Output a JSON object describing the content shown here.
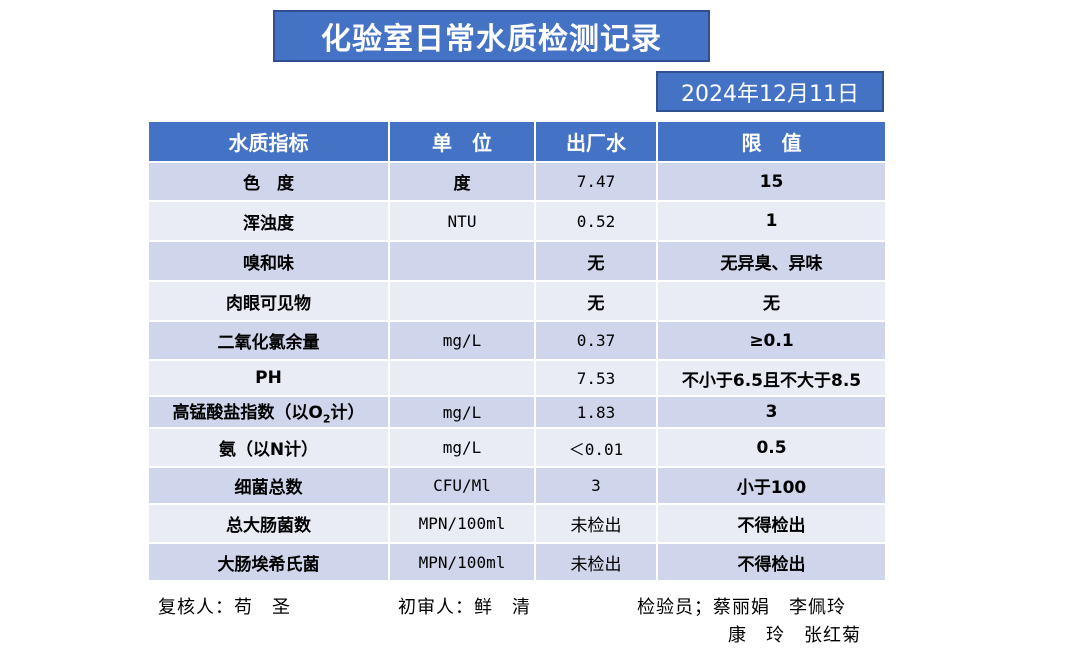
{
  "title": "化验室日常水质检测记录",
  "date": "2024年12月11日",
  "headers": [
    "水质指标",
    "单　位",
    "出厂水",
    "限　值"
  ],
  "rows": [
    {
      "indicator": "色　度",
      "unit": "度",
      "value": "7.47",
      "limit": "15"
    },
    {
      "indicator": "浑浊度",
      "unit": "NTU",
      "value": "0.52",
      "limit": "1"
    },
    {
      "indicator": "嗅和味",
      "unit": "",
      "value": "无",
      "limit": "无异臭、异味"
    },
    {
      "indicator": "肉眼可见物",
      "unit": "",
      "value": "无",
      "limit": "无"
    },
    {
      "indicator": "二氧化氯余量",
      "unit": "mg/L",
      "value": "0.37",
      "limit": "≥0.1"
    },
    {
      "indicator": "PH",
      "unit": "",
      "value": "7.53",
      "limit": "不小于6.5且不大于8.5"
    },
    {
      "indicator": "高锰酸盐指数（以O2计）",
      "indicator_pre": "高锰酸盐指数（以O",
      "indicator_sub": "2",
      "indicator_post": "计）",
      "unit": "mg/L",
      "value": "1.83",
      "limit": "3"
    },
    {
      "indicator": "氨（以N计）",
      "unit": "mg/L",
      "value": "＜0.01",
      "limit": "0.5"
    },
    {
      "indicator": "细菌总数",
      "unit": "CFU/Ml",
      "value": "3",
      "limit": "小于100"
    },
    {
      "indicator": "总大肠菌数",
      "unit": "MPN/100ml",
      "value": "未检出",
      "limit": "不得检出"
    },
    {
      "indicator": "大肠埃希氏菌",
      "unit": "MPN/100ml",
      "value": "未检出",
      "limit": "不得检出"
    }
  ],
  "footer": {
    "reviewer": "复核人：苟　圣",
    "first_reviewer": "初审人：鲜　清",
    "inspectors_line1": "检验员；蔡丽娟　李佩玲",
    "inspectors_line2": "康　玲　张红菊"
  }
}
